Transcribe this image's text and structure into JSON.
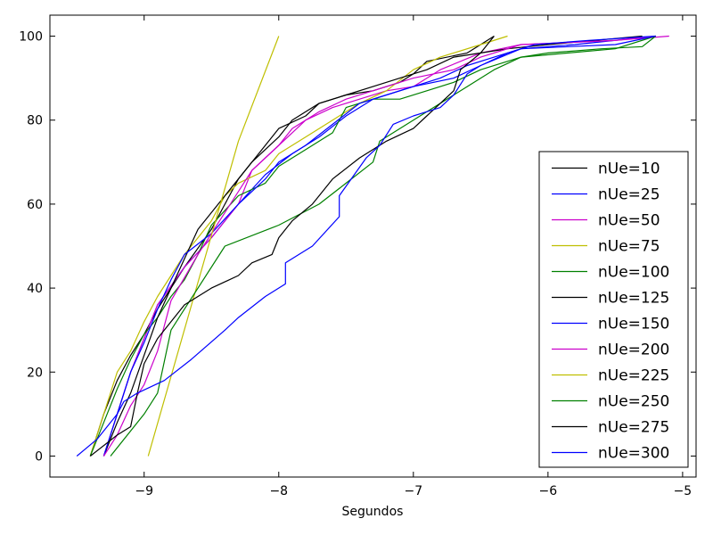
{
  "chart_data": {
    "type": "line",
    "title": "",
    "xlabel": "Segundos",
    "ylabel": "",
    "xlim": [
      -9.7,
      -4.9
    ],
    "ylim": [
      -5,
      105
    ],
    "xticks": [
      -9,
      -8,
      -7,
      -6,
      -5
    ],
    "xtick_labels": [
      "−9",
      "−8",
      "−7",
      "−6",
      "−5"
    ],
    "yticks": [
      0,
      20,
      40,
      60,
      80,
      100
    ],
    "ytick_labels": [
      "0",
      "20",
      "40",
      "60",
      "80",
      "100"
    ],
    "grid": false,
    "legend_position": "lower-right",
    "series": [
      {
        "name": "nUe=10",
        "color": "#000000",
        "x": [
          -9.4,
          -9.3,
          -9.2,
          -9.1,
          -9.0,
          -8.9,
          -8.7,
          -8.5,
          -8.4,
          -8.3,
          -8.1,
          -8.0,
          -7.8,
          -7.7,
          -7.5,
          -7.3,
          -7.1,
          -7.0,
          -6.9,
          -6.6,
          -6.5,
          -6.4
        ],
        "y": [
          0,
          10,
          18,
          24,
          29,
          35,
          45,
          54,
          60,
          66,
          74,
          78,
          81,
          84,
          86,
          87,
          89,
          91,
          94,
          96,
          98,
          100
        ]
      },
      {
        "name": "nUe=25",
        "color": "#0000ff",
        "x": [
          -9.3,
          -9.2,
          -9.1,
          -9.0,
          -8.9,
          -8.7,
          -8.5,
          -8.3,
          -8.1,
          -7.9,
          -7.7,
          -7.5,
          -7.3,
          -7.0,
          -6.7,
          -6.5,
          -6.2,
          -5.8,
          -5.2
        ],
        "y": [
          0,
          10,
          20,
          28,
          36,
          45,
          52,
          60,
          67,
          72,
          76,
          81,
          85,
          88,
          90,
          93,
          97,
          98,
          100
        ]
      },
      {
        "name": "nUe=50",
        "color": "#cc00cc",
        "x": [
          -9.3,
          -9.2,
          -9.1,
          -9.0,
          -8.9,
          -8.7,
          -8.5,
          -8.3,
          -8.2,
          -8.0,
          -7.9,
          -7.8,
          -7.6,
          -7.4,
          -7.2,
          -7.0,
          -6.8,
          -6.5,
          -6.2,
          -5.5,
          -5.1
        ],
        "y": [
          0,
          10,
          20,
          28,
          36,
          45,
          52,
          60,
          68,
          74,
          77,
          80,
          83,
          85,
          87,
          88,
          92,
          96,
          98,
          99,
          100
        ]
      },
      {
        "name": "nUe=75",
        "color": "#bfbf00",
        "x": [
          -9.4,
          -9.3,
          -9.2,
          -9.1,
          -9.0,
          -8.9,
          -8.8,
          -8.7,
          -8.6,
          -8.5,
          -8.4,
          -8.3,
          -8.1,
          -8.0,
          -7.8,
          -7.6,
          -7.4,
          -7.2,
          -7.0,
          -6.8,
          -6.5,
          -6.3
        ],
        "y": [
          0,
          10,
          20,
          25,
          32,
          38,
          43,
          48,
          52,
          56,
          62,
          65,
          68,
          72,
          76,
          80,
          84,
          87,
          92,
          95,
          98,
          100
        ]
      },
      {
        "name": "nUe=100",
        "color": "#008000",
        "x": [
          -9.4,
          -9.3,
          -9.2,
          -9.1,
          -9.0,
          -8.9,
          -8.8,
          -8.7,
          -8.6,
          -8.5,
          -8.3,
          -8.1,
          -8.0,
          -7.8,
          -7.6,
          -7.5,
          -7.3,
          -7.1,
          -6.9,
          -6.7,
          -6.5,
          -6.2,
          -5.5,
          -5.2
        ],
        "y": [
          0,
          8,
          16,
          23,
          29,
          33,
          38,
          42,
          48,
          55,
          62,
          65,
          69,
          73,
          77,
          83,
          85,
          85,
          87,
          89,
          92,
          95,
          97,
          100
        ]
      },
      {
        "name": "nUe=125",
        "color": "#000000",
        "x": [
          -9.3,
          -9.2,
          -9.1,
          -9.0,
          -8.9,
          -8.8,
          -8.7,
          -8.6,
          -8.4,
          -8.2,
          -8.0,
          -7.9,
          -7.7,
          -7.5,
          -7.3,
          -7.1,
          -6.9,
          -6.7,
          -6.5,
          -6.3,
          -6.0,
          -5.3
        ],
        "y": [
          0,
          8,
          15,
          24,
          33,
          40,
          47,
          54,
          62,
          70,
          76,
          80,
          84,
          86,
          88,
          90,
          92,
          95,
          96,
          97,
          98,
          100
        ]
      },
      {
        "name": "nUe=150",
        "color": "#0000ff",
        "x": [
          -9.3,
          -9.2,
          -9.1,
          -9.0,
          -8.9,
          -8.8,
          -8.7,
          -8.5,
          -8.3,
          -8.1,
          -8.0,
          -7.8,
          -7.6,
          -7.4,
          -7.2,
          -7.0,
          -6.8,
          -6.6,
          -6.4,
          -6.2,
          -5.5,
          -5.2
        ],
        "y": [
          0,
          10,
          20,
          27,
          35,
          42,
          48,
          53,
          60,
          66,
          70,
          74,
          79,
          84,
          86,
          88,
          90,
          93,
          95,
          97,
          98,
          100
        ]
      },
      {
        "name": "nUe=200",
        "color": "#cc00cc",
        "x": [
          -9.3,
          -9.2,
          -9.1,
          -9.0,
          -8.9,
          -8.8,
          -8.6,
          -8.4,
          -8.2,
          -8.0,
          -7.9,
          -7.7,
          -7.5,
          -7.2,
          -7.0,
          -6.7,
          -6.5,
          -6.2,
          -5.5,
          -5.2
        ],
        "y": [
          0,
          5,
          12,
          17,
          25,
          37,
          48,
          58,
          68,
          74,
          78,
          82,
          85,
          88,
          90,
          92,
          95,
          98,
          99,
          100
        ]
      },
      {
        "name": "nUe=225",
        "color": "#bfbf00",
        "x": [
          -8.97,
          -8.3,
          -8.0
        ],
        "y": [
          0,
          75,
          100
        ]
      },
      {
        "name": "nUe=250",
        "color": "#008000",
        "x": [
          -9.25,
          -9.0,
          -8.9,
          -8.8,
          -8.7,
          -8.4,
          -8.0,
          -7.7,
          -7.5,
          -7.3,
          -7.25,
          -7.0,
          -6.6,
          -6.4,
          -6.2,
          -6.0,
          -5.6,
          -5.3,
          -5.2
        ],
        "y": [
          0,
          10,
          15,
          30,
          35,
          50,
          55,
          60,
          65,
          70,
          75,
          80,
          88,
          92,
          95,
          96,
          97,
          97.5,
          100
        ]
      },
      {
        "name": "nUe=275",
        "color": "#000000",
        "x": [
          -9.4,
          -9.2,
          -9.1,
          -9.05,
          -9.0,
          -8.9,
          -8.8,
          -8.7,
          -8.6,
          -8.5,
          -8.3,
          -8.2,
          -8.05,
          -8.0,
          -7.9,
          -7.75,
          -7.7,
          -7.6,
          -7.4,
          -7.2,
          -7.0,
          -6.9,
          -6.8,
          -6.7,
          -6.65,
          -6.5,
          -6.4
        ],
        "y": [
          0,
          5,
          7,
          15,
          22,
          28,
          32,
          36,
          38,
          40,
          43,
          46,
          48,
          52,
          56,
          60,
          62,
          66,
          71,
          75,
          78,
          81,
          84,
          87,
          92,
          96,
          100
        ]
      },
      {
        "name": "nUe=300",
        "color": "#0000ff",
        "x": [
          -9.5,
          -9.35,
          -9.25,
          -9.2,
          -9.15,
          -9.05,
          -8.85,
          -8.65,
          -8.4,
          -8.3,
          -8.1,
          -7.95,
          -7.95,
          -7.75,
          -7.55,
          -7.55,
          -7.35,
          -7.25,
          -7.15,
          -7.0,
          -6.8,
          -6.7,
          -6.6,
          -6.5,
          -6.3,
          -6.1,
          -5.7,
          -5.2
        ],
        "y": [
          0,
          4,
          8,
          10,
          13,
          15,
          18,
          23,
          30,
          33,
          38,
          41,
          46,
          50,
          57,
          62,
          71,
          74,
          79,
          81,
          83,
          86,
          91,
          93,
          96,
          98,
          99,
          100
        ]
      }
    ]
  }
}
